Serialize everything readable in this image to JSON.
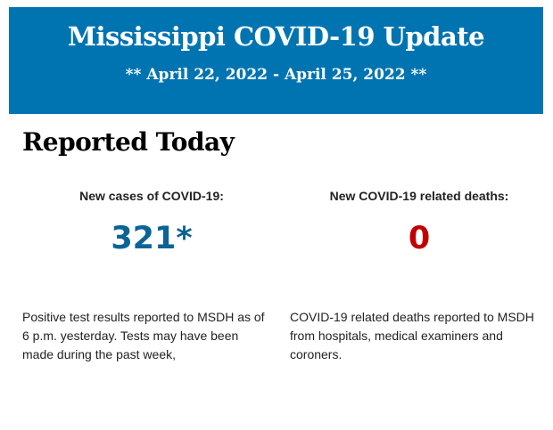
{
  "banner": {
    "title": "Mississippi COVID-19 Update",
    "dates": "** April 22, 2022 - April 25, 2022 **",
    "color": "#0074b1"
  },
  "section": {
    "heading": "Reported Today"
  },
  "cases": {
    "label": "New cases of COVID-19:",
    "value": "321*",
    "color": "#0a6496",
    "description": "Positive test results reported to MSDH as of 6 p.m. yesterday. Tests may have been made during the past week,"
  },
  "deaths": {
    "label": "New COVID-19 related deaths:",
    "value": "0",
    "color": "#c00000",
    "description": "COVID-19 related deaths reported to MSDH from hospitals, medical examiners and coroners."
  }
}
